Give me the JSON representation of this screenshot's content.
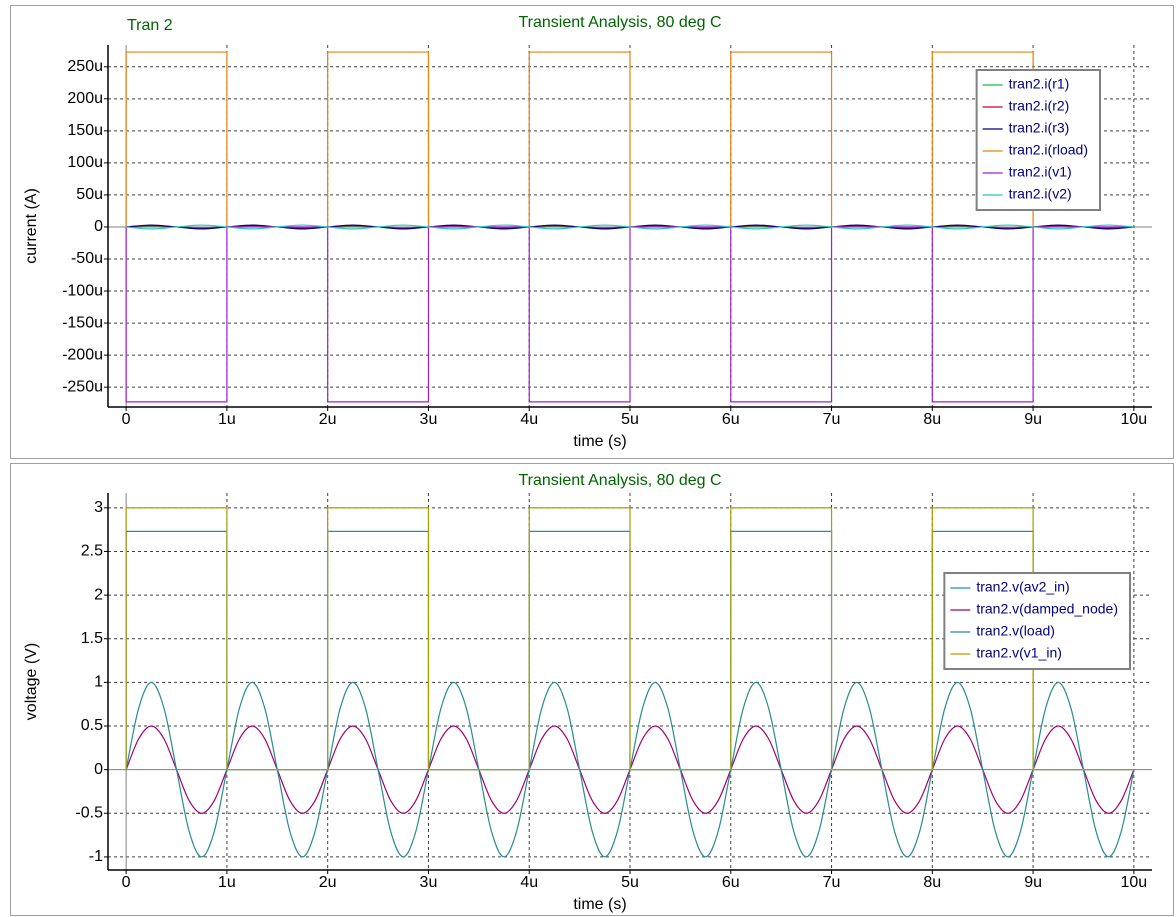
{
  "chart_data": [
    {
      "type": "line",
      "title": "Transient Analysis, 80 deg C",
      "annotation": "Tran 2",
      "x_label": "time (s)",
      "y_label": "current (A)",
      "xlim": [
        -1.8e-07,
        1.018e-05
      ],
      "xticks": [
        0,
        {
          "value": 1e-06,
          "label": "1u"
        },
        {
          "value": 2e-06,
          "label": "2u"
        },
        {
          "value": 3e-06,
          "label": "3u"
        },
        {
          "value": 4e-06,
          "label": "4u"
        },
        {
          "value": 5e-06,
          "label": "5u"
        },
        {
          "value": 6e-06,
          "label": "6u"
        },
        {
          "value": 7e-06,
          "label": "7u"
        },
        {
          "value": 8e-06,
          "label": "8u"
        },
        {
          "value": 9e-06,
          "label": "9u"
        },
        {
          "value": 1e-05,
          "label": "10u"
        }
      ],
      "ylim": [
        -0.000281,
        0.000284
      ],
      "yticks": [
        {
          "value": -0.00025,
          "label": "-250u"
        },
        {
          "value": -0.0002,
          "label": "-200u"
        },
        {
          "value": -0.00015,
          "label": "-150u"
        },
        {
          "value": -0.0001,
          "label": "-100u"
        },
        {
          "value": -5e-05,
          "label": "-50u"
        },
        0,
        {
          "value": 5e-05,
          "label": "50u"
        },
        {
          "value": 0.0001,
          "label": "100u"
        },
        {
          "value": 0.00015,
          "label": "150u"
        },
        {
          "value": 0.0002,
          "label": "200u"
        },
        {
          "value": 0.00025,
          "label": "250u"
        }
      ],
      "grid": true,
      "legend": "upper right",
      "x": [
        0,
        2.5e-07,
        5e-07,
        7.5e-07,
        1e-06,
        1.25e-06,
        1.5e-06,
        1.75e-06,
        2e-06,
        2.25e-06,
        2.5e-06,
        2.75e-06,
        3e-06,
        3.25e-06,
        3.5e-06,
        3.75e-06,
        4e-06,
        4.25e-06,
        4.5e-06,
        4.75e-06,
        5e-06,
        5.25e-06,
        5.5e-06,
        5.75e-06,
        6e-06,
        6.25e-06,
        6.5e-06,
        6.75e-06,
        7e-06,
        7.25e-06,
        7.5e-06,
        7.75e-06,
        8e-06,
        8.25e-06,
        8.5e-06,
        8.75e-06,
        9e-06,
        9.25e-06,
        9.5e-06,
        9.75e-06,
        1e-05
      ],
      "series": [
        {
          "name": "tran2.i(r1)",
          "color": "#10c040",
          "values": [
            0,
            1.5e-06,
            0,
            -1.5e-06,
            0,
            1.5e-06,
            0,
            -1.5e-06,
            0,
            1.5e-06,
            0,
            -1.5e-06,
            0,
            1.5e-06,
            0,
            -1.5e-06,
            0,
            1.5e-06,
            0,
            -1.5e-06,
            0,
            1.5e-06,
            0,
            -1.5e-06,
            0,
            1.5e-06,
            0,
            -1.5e-06,
            0,
            1.5e-06,
            0,
            -1.5e-06,
            0,
            1.5e-06,
            0,
            -1.5e-06,
            0,
            1.5e-06,
            0,
            -1.5e-06,
            0
          ]
        },
        {
          "name": "tran2.i(r2)",
          "color": "#c8002c",
          "values": [
            0,
            2e-06,
            0,
            -2e-06,
            0,
            2e-06,
            0,
            -2e-06,
            0,
            2e-06,
            0,
            -2e-06,
            0,
            2e-06,
            0,
            -2e-06,
            0,
            2e-06,
            0,
            -2e-06,
            0,
            2e-06,
            0,
            -2e-06,
            0,
            2e-06,
            0,
            -2e-06,
            0,
            2e-06,
            0,
            -2e-06,
            0,
            2e-06,
            0,
            -2e-06,
            0,
            2e-06,
            0,
            -2e-06,
            0
          ]
        },
        {
          "name": "tran2.i(r3)",
          "color": "#000080",
          "values": [
            0,
            3e-06,
            0,
            -3e-06,
            0,
            3e-06,
            0,
            -3e-06,
            0,
            3e-06,
            0,
            -3e-06,
            0,
            3e-06,
            0,
            -3e-06,
            0,
            3e-06,
            0,
            -3e-06,
            0,
            3e-06,
            0,
            -3e-06,
            0,
            3e-06,
            0,
            -3e-06,
            0,
            3e-06,
            0,
            -3e-06,
            0,
            3e-06,
            0,
            -3e-06,
            0,
            3e-06,
            0,
            -3e-06,
            0
          ]
        },
        {
          "name": "tran2.i(rload)",
          "color": "#e8800c",
          "x": [
            0,
            0,
            1e-06,
            1e-06,
            2e-06,
            2e-06,
            3e-06,
            3e-06,
            4e-06,
            4e-06,
            5e-06,
            5e-06,
            6e-06,
            6e-06,
            7e-06,
            7e-06,
            8e-06,
            8e-06,
            9e-06,
            9e-06,
            1e-05
          ],
          "values": [
            0,
            0.000273,
            0.000273,
            0,
            0,
            0.000273,
            0.000273,
            0,
            0,
            0.000273,
            0.000273,
            0,
            0,
            0.000273,
            0.000273,
            0,
            0,
            0.000273,
            0.000273,
            0,
            0
          ]
        },
        {
          "name": "tran2.i(v1)",
          "color": "#a020d0",
          "x": [
            0,
            0,
            1e-06,
            1e-06,
            2e-06,
            2e-06,
            3e-06,
            3e-06,
            4e-06,
            4e-06,
            5e-06,
            5e-06,
            6e-06,
            6e-06,
            7e-06,
            7e-06,
            8e-06,
            8e-06,
            9e-06,
            9e-06,
            1e-05
          ],
          "values": [
            0,
            -0.000273,
            -0.000273,
            0,
            0,
            -0.000273,
            -0.000273,
            0,
            0,
            -0.000273,
            -0.000273,
            0,
            0,
            -0.000273,
            -0.000273,
            0,
            0,
            -0.000273,
            -0.000273,
            0,
            0
          ]
        },
        {
          "name": "tran2.i(v2)",
          "color": "#20c8c8",
          "values": [
            0,
            -3e-06,
            0,
            3e-06,
            0,
            -3e-06,
            0,
            3e-06,
            0,
            -3e-06,
            0,
            3e-06,
            0,
            -3e-06,
            0,
            3e-06,
            0,
            -3e-06,
            0,
            3e-06,
            0,
            -3e-06,
            0,
            3e-06,
            0,
            -3e-06,
            0,
            3e-06,
            0,
            -3e-06,
            0,
            3e-06,
            0,
            -3e-06,
            0,
            3e-06,
            0,
            -3e-06,
            0,
            3e-06,
            0
          ]
        }
      ]
    },
    {
      "type": "line",
      "title": "Transient Analysis, 80 deg C",
      "x_label": "time (s)",
      "y_label": "voltage (V)",
      "xlim": [
        -1.8e-07,
        1.018e-05
      ],
      "xticks": [
        0,
        {
          "value": 1e-06,
          "label": "1u"
        },
        {
          "value": 2e-06,
          "label": "2u"
        },
        {
          "value": 3e-06,
          "label": "3u"
        },
        {
          "value": 4e-06,
          "label": "4u"
        },
        {
          "value": 5e-06,
          "label": "5u"
        },
        {
          "value": 6e-06,
          "label": "6u"
        },
        {
          "value": 7e-06,
          "label": "7u"
        },
        {
          "value": 8e-06,
          "label": "8u"
        },
        {
          "value": 9e-06,
          "label": "9u"
        },
        {
          "value": 1e-05,
          "label": "10u"
        }
      ],
      "ylim": [
        -1.15,
        3.17
      ],
      "yticks": [
        -1,
        -0.5,
        0,
        0.5,
        1,
        1.5,
        2,
        2.5,
        3
      ],
      "grid": true,
      "legend": "right",
      "x": [
        0,
        1.25e-07,
        2.5e-07,
        3.75e-07,
        5e-07,
        6.25e-07,
        7.5e-07,
        8.75e-07,
        1e-06,
        1.125e-06,
        1.25e-06,
        1.375e-06,
        1.5e-06,
        1.625e-06,
        1.75e-06,
        1.875e-06,
        2e-06,
        2.125e-06,
        2.25e-06,
        2.375e-06,
        2.5e-06,
        2.625e-06,
        2.75e-06,
        2.875e-06,
        3e-06,
        3.125e-06,
        3.25e-06,
        3.375e-06,
        3.5e-06,
        3.625e-06,
        3.75e-06,
        3.875e-06,
        4e-06,
        4.125e-06,
        4.25e-06,
        4.375e-06,
        4.5e-06,
        4.625e-06,
        4.75e-06,
        4.875e-06,
        5e-06,
        5.125e-06,
        5.25e-06,
        5.375e-06,
        5.5e-06,
        5.625e-06,
        5.75e-06,
        5.875e-06,
        6e-06,
        6.125e-06,
        6.25e-06,
        6.375e-06,
        6.5e-06,
        6.625e-06,
        6.75e-06,
        6.875e-06,
        7e-06,
        7.125e-06,
        7.25e-06,
        7.375e-06,
        7.5e-06,
        7.625e-06,
        7.75e-06,
        7.875e-06,
        8e-06,
        8.125e-06,
        8.25e-06,
        8.375e-06,
        8.5e-06,
        8.625e-06,
        8.75e-06,
        8.875e-06,
        9e-06,
        9.125e-06,
        9.25e-06,
        9.375e-06,
        9.5e-06,
        9.625e-06,
        9.75e-06,
        9.875e-06,
        1e-05
      ],
      "series": [
        {
          "name": "tran2.v(av2_in)",
          "color": "#1e8cc8",
          "x": [
            0,
            0,
            1e-06,
            1e-06,
            2e-06,
            2e-06,
            3e-06,
            3e-06,
            4e-06,
            4e-06,
            5e-06,
            5e-06,
            6e-06,
            6e-06,
            7e-06,
            7e-06,
            8e-06,
            8e-06,
            9e-06,
            9e-06,
            1e-05
          ],
          "values": [
            0,
            2.73,
            2.73,
            0,
            0,
            2.73,
            2.73,
            0,
            0,
            2.73,
            2.73,
            0,
            0,
            2.73,
            2.73,
            0,
            0,
            2.73,
            2.73,
            0,
            0
          ]
        },
        {
          "name": "tran2.v(damped_node)",
          "color": "#a00070",
          "values": [
            0,
            0.354,
            0.5,
            0.354,
            0,
            -0.354,
            -0.5,
            -0.354,
            0,
            0.354,
            0.5,
            0.354,
            0,
            -0.354,
            -0.5,
            -0.354,
            0,
            0.354,
            0.5,
            0.354,
            0,
            -0.354,
            -0.5,
            -0.354,
            0,
            0.354,
            0.5,
            0.354,
            0,
            -0.354,
            -0.5,
            -0.354,
            0,
            0.354,
            0.5,
            0.354,
            0,
            -0.354,
            -0.5,
            -0.354,
            0,
            0.354,
            0.5,
            0.354,
            0,
            -0.354,
            -0.5,
            -0.354,
            0,
            0.354,
            0.5,
            0.354,
            0,
            -0.354,
            -0.5,
            -0.354,
            0,
            0.354,
            0.5,
            0.354,
            0,
            -0.354,
            -0.5,
            -0.354,
            0,
            0.354,
            0.5,
            0.354,
            0,
            -0.354,
            -0.5,
            -0.354,
            0,
            0.354,
            0.5,
            0.354,
            0,
            -0.354,
            -0.5,
            -0.354,
            0
          ]
        },
        {
          "name": "tran2.v(load)",
          "color": "#2a8c8c",
          "values": [
            0,
            0.707,
            1,
            0.707,
            0,
            -0.707,
            -1,
            -0.707,
            0,
            0.707,
            1,
            0.707,
            0,
            -0.707,
            -1,
            -0.707,
            0,
            0.707,
            1,
            0.707,
            0,
            -0.707,
            -1,
            -0.707,
            0,
            0.707,
            1,
            0.707,
            0,
            -0.707,
            -1,
            -0.707,
            0,
            0.707,
            1,
            0.707,
            0,
            -0.707,
            -1,
            -0.707,
            0,
            0.707,
            1,
            0.707,
            0,
            -0.707,
            -1,
            -0.707,
            0,
            0.707,
            1,
            0.707,
            0,
            -0.707,
            -1,
            -0.707,
            0,
            0.707,
            1,
            0.707,
            0,
            -0.707,
            -1,
            -0.707,
            0,
            0.707,
            1,
            0.707,
            0,
            -0.707,
            -1,
            -0.707,
            0,
            0.707,
            1,
            0.707,
            0,
            -0.707,
            -1,
            -0.707,
            0
          ]
        },
        {
          "name": "tran2.v(v1_in)",
          "color": "#a8a000",
          "x": [
            0,
            0,
            1e-06,
            1e-06,
            2e-06,
            2e-06,
            3e-06,
            3e-06,
            4e-06,
            4e-06,
            5e-06,
            5e-06,
            6e-06,
            6e-06,
            7e-06,
            7e-06,
            8e-06,
            8e-06,
            9e-06,
            9e-06,
            1e-05
          ],
          "values": [
            0,
            3,
            3,
            0,
            0,
            3,
            3,
            0,
            0,
            3,
            3,
            0,
            0,
            3,
            3,
            0,
            0,
            3,
            3,
            0,
            0
          ]
        }
      ]
    }
  ]
}
